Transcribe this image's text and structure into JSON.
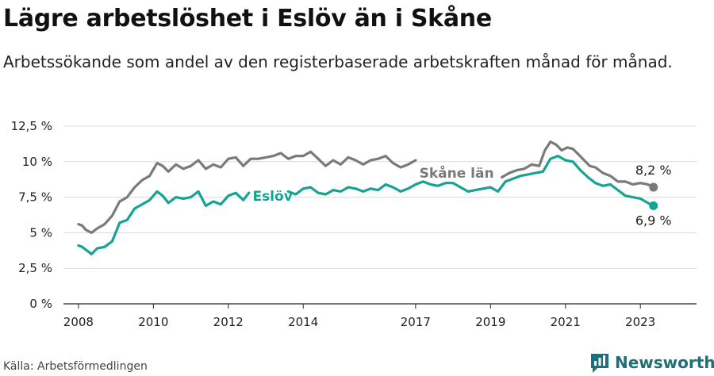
{
  "header": {
    "title": "Lägre arbetslöshet i Eslöv än i Skåne",
    "subtitle": "Arbetssökande som andel av den registerbaserade arbetskraften månad för månad."
  },
  "footer": {
    "source": "Källa: Arbetsförmedlingen",
    "brand": "Newsworthy"
  },
  "colors": {
    "eslov": "#16a394",
    "skane": "#7a7a7a",
    "brand": "#1f6f78"
  },
  "chart_data": {
    "type": "line",
    "title": "Lägre arbetslöshet i Eslöv än i Skåne",
    "ylim": [
      0,
      12.5
    ],
    "y_ticks": [
      {
        "value": 0,
        "label": "0 %"
      },
      {
        "value": 2.5,
        "label": "2,5 %"
      },
      {
        "value": 5,
        "label": "5 %"
      },
      {
        "value": 7.5,
        "label": "7,5 %"
      },
      {
        "value": 10,
        "label": "10 %"
      },
      {
        "value": 12.5,
        "label": "12,5 %"
      }
    ],
    "xlim": [
      2007.6,
      2024.5
    ],
    "x_ticks": [
      {
        "value": 2008,
        "label": "2008"
      },
      {
        "value": 2010,
        "label": "2010"
      },
      {
        "value": 2012,
        "label": "2012"
      },
      {
        "value": 2014,
        "label": "2014"
      },
      {
        "value": 2017,
        "label": "2017"
      },
      {
        "value": 2019,
        "label": "2019"
      },
      {
        "value": 2021,
        "label": "2021"
      },
      {
        "value": 2023,
        "label": "2023"
      }
    ],
    "grid": true,
    "series": [
      {
        "name": "Skåne län",
        "label": "Skåne län",
        "color": "#7a7a7a",
        "end_label": "8,2 %",
        "segments": [
          {
            "x": [
              2008.0,
              2008.1,
              2008.2,
              2008.35,
              2008.5,
              2008.7,
              2008.9,
              2009.1,
              2009.3,
              2009.5,
              2009.7,
              2009.9,
              2010.1,
              2010.25,
              2010.4,
              2010.6,
              2010.8,
              2011.0,
              2011.2,
              2011.4,
              2011.6,
              2011.8,
              2012.0,
              2012.2,
              2012.4,
              2012.6,
              2012.8,
              2013.0,
              2013.2,
              2013.4,
              2013.6,
              2013.8,
              2014.0,
              2014.2,
              2014.4,
              2014.6,
              2014.8,
              2015.0,
              2015.2,
              2015.4,
              2015.6,
              2015.8,
              2016.0,
              2016.2,
              2016.4,
              2016.6,
              2016.8,
              2017.0
            ],
            "y": [
              5.6,
              5.5,
              5.2,
              5.0,
              5.3,
              5.6,
              6.2,
              7.2,
              7.5,
              8.2,
              8.7,
              9.0,
              9.9,
              9.7,
              9.3,
              9.8,
              9.5,
              9.7,
              10.1,
              9.5,
              9.8,
              9.6,
              10.2,
              10.3,
              9.7,
              10.2,
              10.2,
              10.3,
              10.4,
              10.6,
              10.2,
              10.4,
              10.4,
              10.7,
              10.2,
              9.7,
              10.1,
              9.8,
              10.3,
              10.1,
              9.8,
              10.1,
              10.2,
              10.4,
              9.9,
              9.6,
              9.8,
              10.1
            ]
          },
          {
            "x": [
              2019.3,
              2019.5,
              2019.7,
              2019.9,
              2020.1,
              2020.3,
              2020.45,
              2020.6,
              2020.75,
              2020.9,
              2021.05,
              2021.2,
              2021.35,
              2021.5,
              2021.65,
              2021.8,
              2022.0,
              2022.2,
              2022.4,
              2022.6,
              2022.8,
              2023.0,
              2023.2,
              2023.35
            ],
            "y": [
              8.9,
              9.2,
              9.4,
              9.5,
              9.8,
              9.7,
              10.8,
              11.4,
              11.2,
              10.8,
              11.0,
              10.9,
              10.5,
              10.1,
              9.7,
              9.6,
              9.2,
              9.0,
              8.6,
              8.6,
              8.4,
              8.5,
              8.4,
              8.2
            ]
          }
        ]
      },
      {
        "name": "Eslöv",
        "label": "Eslöv",
        "color": "#16a394",
        "end_label": "6,9 %",
        "segments": [
          {
            "x": [
              2008.0,
              2008.1,
              2008.2,
              2008.35,
              2008.5,
              2008.7,
              2008.9,
              2009.1,
              2009.3,
              2009.5,
              2009.7,
              2009.9,
              2010.1,
              2010.25,
              2010.4,
              2010.6,
              2010.8,
              2011.0,
              2011.2,
              2011.4,
              2011.6,
              2011.8,
              2012.0,
              2012.2,
              2012.4,
              2012.55
            ],
            "y": [
              4.1,
              4.0,
              3.8,
              3.5,
              3.9,
              4.0,
              4.4,
              5.7,
              5.9,
              6.7,
              7.0,
              7.3,
              7.9,
              7.6,
              7.1,
              7.5,
              7.4,
              7.5,
              7.9,
              6.9,
              7.2,
              7.0,
              7.6,
              7.8,
              7.3,
              7.8
            ]
          },
          {
            "x": [
              2013.6,
              2013.8,
              2014.0,
              2014.2,
              2014.4,
              2014.6,
              2014.8,
              2015.0,
              2015.2,
              2015.4,
              2015.6,
              2015.8,
              2016.0,
              2016.2,
              2016.4,
              2016.6,
              2016.8,
              2017.0,
              2017.2,
              2017.4,
              2017.6,
              2017.8,
              2018.0,
              2018.2,
              2018.4,
              2018.6,
              2018.8,
              2019.0,
              2019.2,
              2019.4,
              2019.6,
              2019.8,
              2020.0,
              2020.2,
              2020.4,
              2020.6,
              2020.8,
              2021.0,
              2021.2,
              2021.4,
              2021.6,
              2021.8,
              2022.0,
              2022.2,
              2022.4,
              2022.6,
              2022.8,
              2023.0,
              2023.2,
              2023.35
            ],
            "y": [
              7.9,
              7.7,
              8.1,
              8.2,
              7.8,
              7.7,
              8.0,
              7.9,
              8.2,
              8.1,
              7.9,
              8.1,
              8.0,
              8.4,
              8.2,
              7.9,
              8.1,
              8.4,
              8.6,
              8.4,
              8.3,
              8.5,
              8.5,
              8.2,
              7.9,
              8.0,
              8.1,
              8.2,
              7.9,
              8.6,
              8.8,
              9.0,
              9.1,
              9.2,
              9.3,
              10.2,
              10.4,
              10.1,
              10.0,
              9.4,
              8.9,
              8.5,
              8.3,
              8.4,
              8.0,
              7.6,
              7.5,
              7.4,
              7.1,
              6.9
            ]
          }
        ]
      }
    ]
  }
}
